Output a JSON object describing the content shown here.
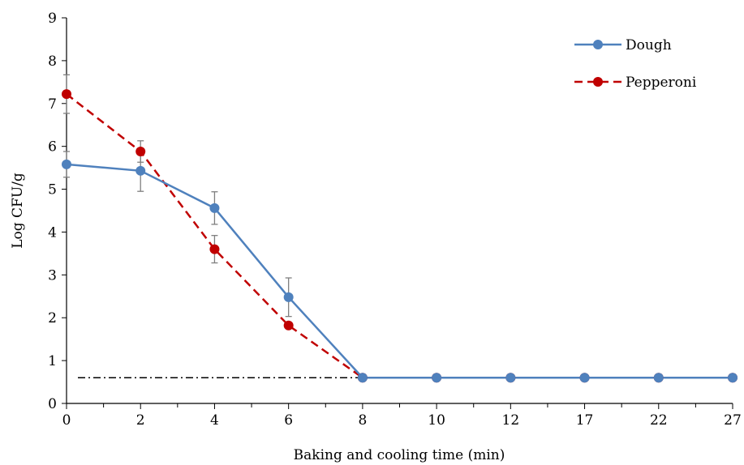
{
  "chart_data": {
    "type": "line",
    "xlabel": "Baking and cooling time (min)",
    "ylabel": "Log CFU/g",
    "categories": [
      "0",
      "2",
      "4",
      "6",
      "8",
      "10",
      "12",
      "17",
      "22",
      "27"
    ],
    "ylim": [
      0,
      9
    ],
    "yticks": [
      "0",
      "1",
      "2",
      "3",
      "4",
      "5",
      "6",
      "7",
      "8",
      "9"
    ],
    "grid": false,
    "legend_position": "top-right",
    "detection_limit": 0.6,
    "series": [
      {
        "name": "Dough",
        "color": "#4F81BD",
        "line_style": "solid",
        "values": [
          5.58,
          5.43,
          4.56,
          2.48,
          0.6,
          0.6,
          0.6,
          0.6,
          0.6,
          0.6
        ],
        "error": [
          0.3,
          0.48,
          0.38,
          0.45,
          null,
          null,
          null,
          null,
          null,
          null
        ]
      },
      {
        "name": "Pepperoni",
        "color": "#C00000",
        "line_style": "dashed",
        "values": [
          7.22,
          5.88,
          3.6,
          1.82,
          0.6,
          0.6,
          0.6,
          0.6,
          0.6,
          0.6
        ],
        "error": [
          0.45,
          0.25,
          0.32,
          null,
          null,
          null,
          null,
          null,
          null,
          null
        ]
      }
    ]
  }
}
